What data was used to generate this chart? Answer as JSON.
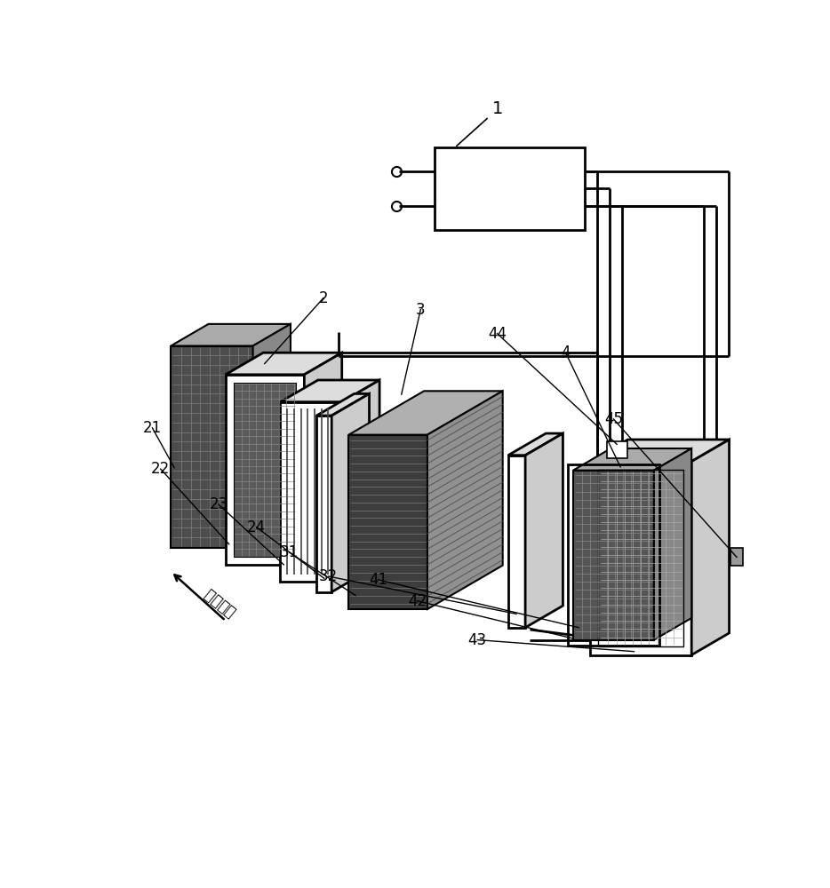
{
  "bg_color": "#ffffff",
  "line_color": "#000000",
  "label_1": "1",
  "label_2": "2",
  "label_3": "3",
  "label_4": "4",
  "label_21": "21",
  "label_22": "22",
  "label_23": "23",
  "label_24": "24",
  "label_31": "31",
  "label_32": "32",
  "label_41": "41",
  "label_42": "42",
  "label_43": "43",
  "label_44": "44",
  "label_45": "45",
  "airflow_label": "气流方向",
  "font_size": 12
}
